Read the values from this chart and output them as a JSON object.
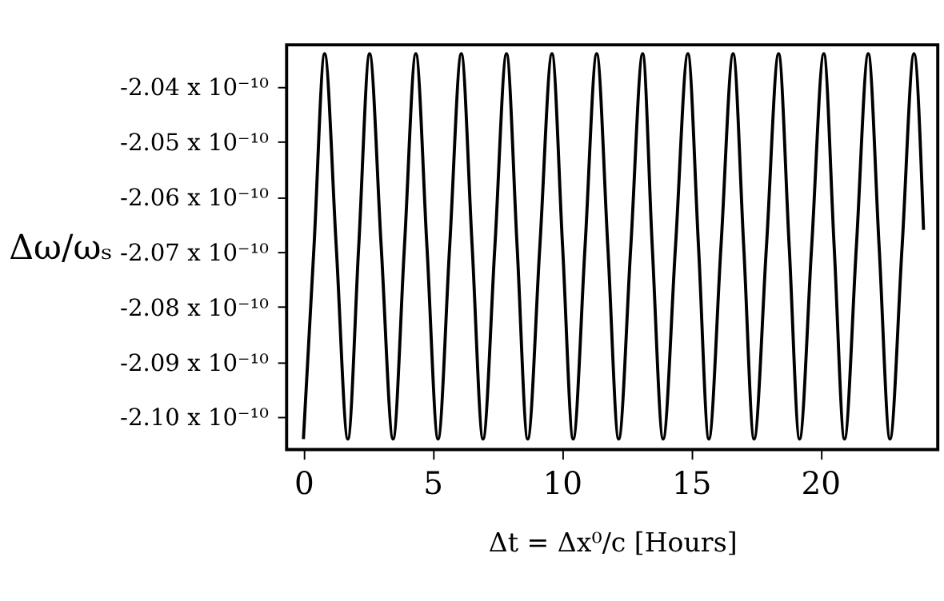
{
  "chart_data": {
    "type": "line",
    "xlabel": "Δt = Δx⁰/c   [Hours]",
    "ylabel": "Δω/ωₛ",
    "x": [
      0,
      0.41,
      0.82,
      1.27,
      1.72,
      2.14,
      2.56,
      3.01,
      3.47,
      3.91,
      4.35,
      4.78,
      5.21,
      5.66,
      6.11,
      6.53,
      6.95,
      7.41,
      7.86,
      8.27,
      8.68,
      9.15,
      9.62,
      10.03,
      10.44,
      10.9,
      11.35,
      11.78,
      12.2,
      12.67,
      13.13,
      13.5,
      13.92,
      14.4,
      14.88,
      15.29,
      15.69,
      16.16,
      16.63,
      17.04,
      17.44,
      17.92,
      18.39,
      18.8,
      19.2,
      19.67,
      20.14,
      20.54,
      20.94,
      21.4,
      21.86,
      22.28,
      22.7,
      23.17,
      23.63,
      24.0
    ],
    "series": [
      {
        "color": "#000000",
        "values": [
          -2.104e-10,
          -2.069e-10,
          -2.034e-10,
          -2.069e-10,
          -2.104e-10,
          -2.069e-10,
          -2.034e-10,
          -2.069e-10,
          -2.104e-10,
          -2.069e-10,
          -2.034e-10,
          -2.069e-10,
          -2.104e-10,
          -2.069e-10,
          -2.034e-10,
          -2.069e-10,
          -2.104e-10,
          -2.069e-10,
          -2.034e-10,
          -2.069e-10,
          -2.104e-10,
          -2.069e-10,
          -2.034e-10,
          -2.069e-10,
          -2.104e-10,
          -2.069e-10,
          -2.034e-10,
          -2.069e-10,
          -2.104e-10,
          -2.069e-10,
          -2.034e-10,
          -2.069e-10,
          -2.104e-10,
          -2.069e-10,
          -2.034e-10,
          -2.069e-10,
          -2.104e-10,
          -2.069e-10,
          -2.034e-10,
          -2.069e-10,
          -2.104e-10,
          -2.069e-10,
          -2.034e-10,
          -2.069e-10,
          -2.104e-10,
          -2.069e-10,
          -2.034e-10,
          -2.069e-10,
          -2.104e-10,
          -2.069e-10,
          -2.034e-10,
          -2.069e-10,
          -2.104e-10,
          -2.069e-10,
          -2.034e-10,
          -2.066e-10
        ]
      }
    ],
    "xlim": [
      -0.65,
      24.55
    ],
    "xticks": [
      0,
      5,
      10,
      15,
      20
    ],
    "ylim": [
      -2.1059e-10,
      -2.0324e-10
    ],
    "yticks": [
      {
        "value": -2.04e-10,
        "label": "-2.04 x 10⁻¹⁰"
      },
      {
        "value": -2.05e-10,
        "label": "-2.05 x 10⁻¹⁰"
      },
      {
        "value": -2.06e-10,
        "label": "-2.06 x 10⁻¹⁰"
      },
      {
        "value": -2.07e-10,
        "label": "-2.07 x 10⁻¹⁰"
      },
      {
        "value": -2.08e-10,
        "label": "-2.08 x 10⁻¹⁰"
      },
      {
        "value": -2.09e-10,
        "label": "-2.09 x 10⁻¹⁰"
      },
      {
        "value": -2.1e-10,
        "label": "-2.10 x 10⁻¹⁰"
      }
    ],
    "grid": false,
    "line_style": "solid",
    "marker": "none"
  }
}
